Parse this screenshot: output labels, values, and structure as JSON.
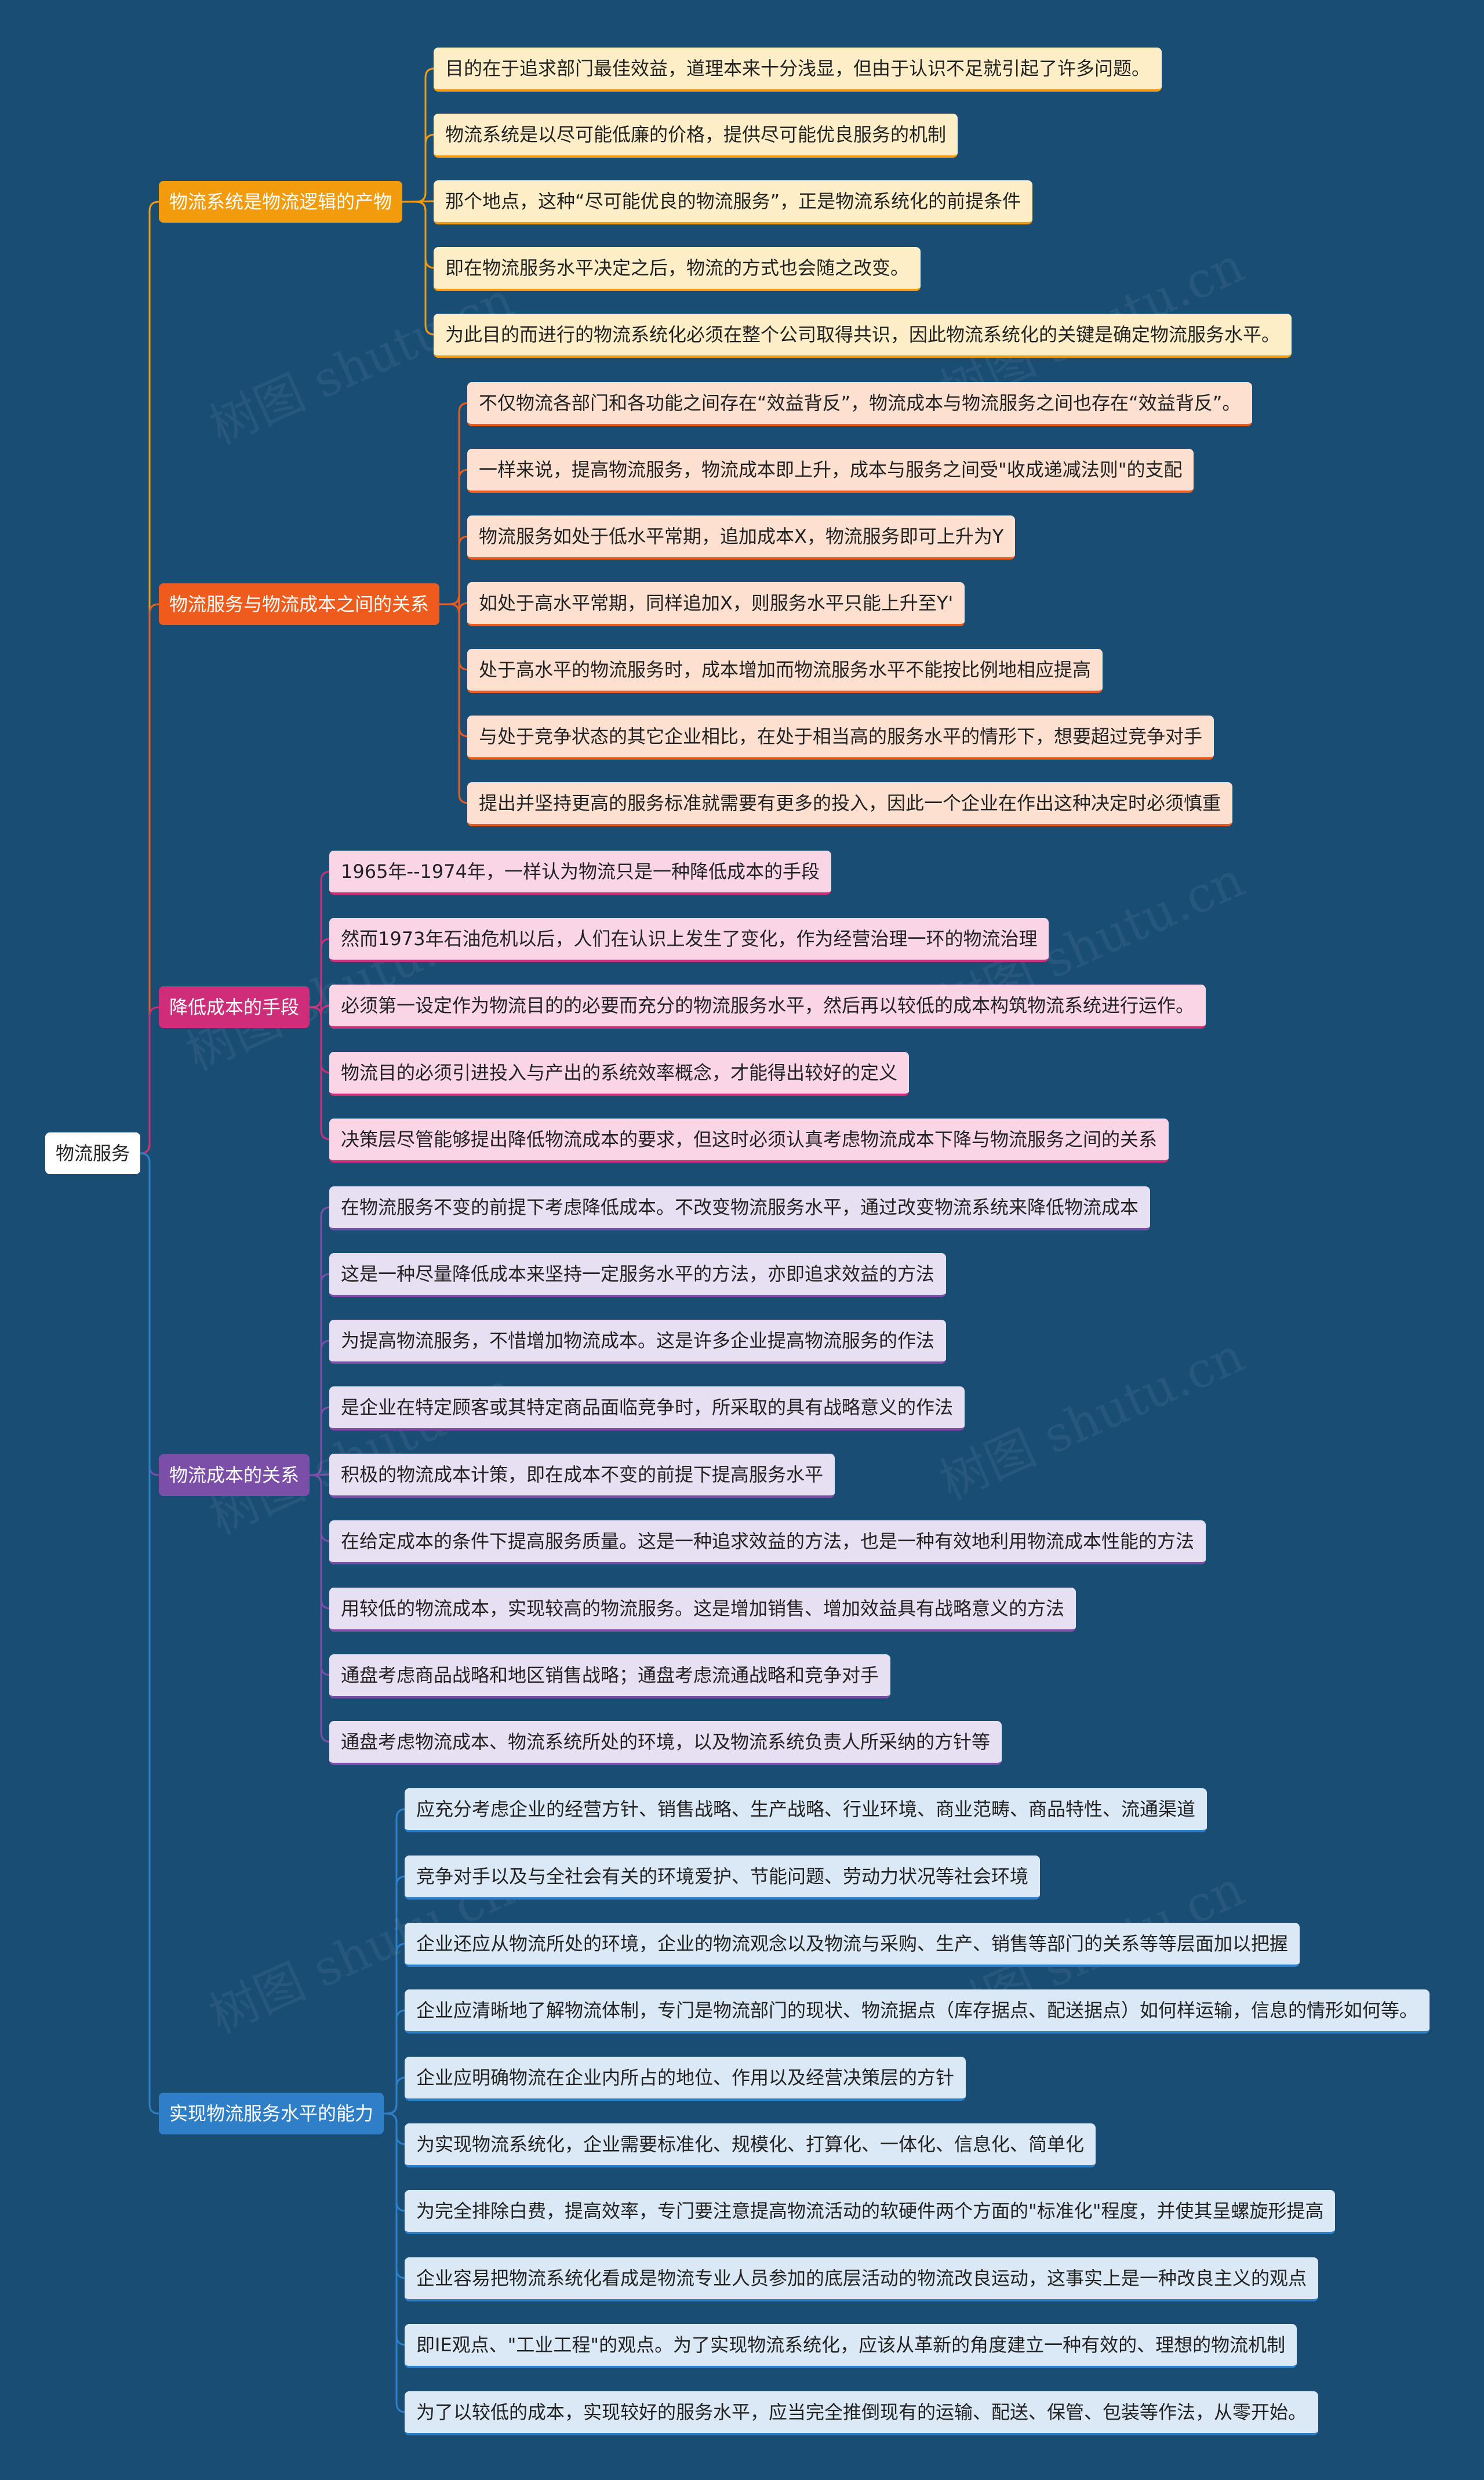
{
  "root": {
    "label": "物流服务"
  },
  "watermark": "树图 shutu.cn",
  "colors": {
    "background": "#1a4d74",
    "branches": [
      "#f29b0d",
      "#ee5b1c",
      "#cf2d79",
      "#7b4fa8",
      "#2f7fc8"
    ],
    "leaf_backgrounds": [
      "#fdeec7",
      "#fde0d0",
      "#f9d5e6",
      "#e7dff2",
      "#dbe8f5"
    ]
  },
  "branches": [
    {
      "label": "物流系统是物流逻辑的产物",
      "items": [
        "目的在于追求部门最佳效益，道理本来十分浅显，但由于认识不足就引起了许多问题。",
        "物流系统是以尽可能低廉的价格，提供尽可能优良服务的机制",
        "那个地点，这种“尽可能优良的物流服务”，正是物流系统化的前提条件",
        "即在物流服务水平决定之后，物流的方式也会随之改变。",
        "为此目的而进行的物流系统化必须在整个公司取得共识，因此物流系统化的关键是确定物流服务水平。"
      ]
    },
    {
      "label": "物流服务与物流成本之间的关系",
      "items": [
        "不仅物流各部门和各功能之间存在“效益背反”，物流成本与物流服务之间也存在“效益背反”。",
        "一样来说，提高物流服务，物流成本即上升，成本与服务之间受\"收成递减法则\"的支配",
        "物流服务如处于低水平常期，追加成本X，物流服务即可上升为Y",
        "如处于高水平常期，同样追加X，则服务水平只能上升至Y'",
        "处于高水平的物流服务时，成本增加而物流服务水平不能按比例地相应提高",
        "与处于竞争状态的其它企业相比，在处于相当高的服务水平的情形下，想要超过竞争对手",
        "提出并坚持更高的服务标准就需要有更多的投入，因此一个企业在作出这种决定时必须慎重"
      ]
    },
    {
      "label": "降低成本的手段",
      "items": [
        "1965年--1974年，一样认为物流只是一种降低成本的手段",
        "然而1973年石油危机以后，人们在认识上发生了变化，作为经营治理一环的物流治理",
        "必须第一设定作为物流目的的必要而充分的物流服务水平，然后再以较低的成本构筑物流系统进行运作。",
        "物流目的必须引进投入与产出的系统效率概念，才能得出较好的定义",
        "决策层尽管能够提出降低物流成本的要求，但这时必须认真考虑物流成本下降与物流服务之间的关系"
      ]
    },
    {
      "label": "物流成本的关系",
      "items": [
        "在物流服务不变的前提下考虑降低成本。不改变物流服务水平，通过改变物流系统来降低物流成本",
        "这是一种尽量降低成本来坚持一定服务水平的方法，亦即追求效益的方法",
        "为提高物流服务，不惜增加物流成本。这是许多企业提高物流服务的作法",
        "是企业在特定顾客或其特定商品面临竞争时，所采取的具有战略意义的作法",
        "积极的物流成本计策，即在成本不变的前提下提高服务水平",
        "在给定成本的条件下提高服务质量。这是一种追求效益的方法，也是一种有效地利用物流成本性能的方法",
        "用较低的物流成本，实现较高的物流服务。这是增加销售、增加效益具有战略意义的方法",
        "通盘考虑商品战略和地区销售战略；通盘考虑流通战略和竞争对手",
        "通盘考虑物流成本、物流系统所处的环境，以及物流系统负责人所采纳的方针等"
      ]
    },
    {
      "label": "实现物流服务水平的能力",
      "items": [
        "应充分考虑企业的经营方针、销售战略、生产战略、行业环境、商业范畴、商品特性、流通渠道",
        "竞争对手以及与全社会有关的环境爱护、节能问题、劳动力状况等社会环境",
        "企业还应从物流所处的环境，企业的物流观念以及物流与采购、生产、销售等部门的关系等等层面加以把握",
        "企业应清晰地了解物流体制，专门是物流部门的现状、物流据点（库存据点、配送据点）如何样运输，信息的情形如何等。",
        "企业应明确物流在企业内所占的地位、作用以及经营决策层的方针",
        "为实现物流系统化，企业需要标准化、规模化、打算化、一体化、信息化、简单化",
        "为完全排除白费，提高效率，专门要注意提高物流活动的软硬件两个方面的\"标准化\"程度，并使其呈螺旋形提高",
        "企业容易把物流系统化看成是物流专业人员参加的底层活动的物流改良运动，这事实上是一种改良主义的观点",
        "即IE观点、\"工业工程\"的观点。为了实现物流系统化，应该从革新的角度建立一种有效的、理想的物流机制",
        "为了以较低的成本，实现较好的服务水平，应当完全推倒现有的运输、配送、保管、包装等作法，从零开始。"
      ]
    }
  ]
}
